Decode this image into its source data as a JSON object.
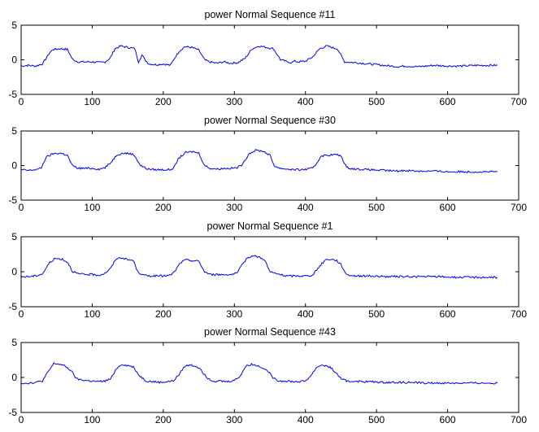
{
  "chart_data": [
    {
      "type": "line",
      "title": "power Normal Sequence #11",
      "xlim": [
        0,
        700
      ],
      "ylim": [
        -5,
        5
      ],
      "xticks": [
        0,
        100,
        200,
        300,
        400,
        500,
        600,
        700
      ],
      "yticks": [
        -5,
        0,
        5
      ],
      "grid": false,
      "color": "#0000ee",
      "series": [
        {
          "x": [
            0,
            10,
            20,
            30,
            40,
            45,
            55,
            65,
            72,
            80,
            90,
            100,
            110,
            118,
            125,
            132,
            140,
            150,
            160,
            165,
            170,
            175,
            180,
            190,
            200,
            210,
            215,
            222,
            230,
            240,
            250,
            258,
            265,
            275,
            285,
            295,
            305,
            315,
            325,
            335,
            345,
            355,
            365,
            375,
            380,
            385,
            390,
            400,
            410,
            420,
            430,
            440,
            445,
            455,
            470,
            490,
            510,
            530,
            540,
            560,
            580,
            600,
            620,
            640,
            660,
            670
          ],
          "y": [
            -0.9,
            -0.8,
            -0.9,
            -0.6,
            1.0,
            1.5,
            1.6,
            1.5,
            0.1,
            -0.3,
            -0.3,
            -0.3,
            -0.4,
            -0.3,
            0.2,
            1.6,
            2.0,
            1.8,
            1.6,
            -0.3,
            0.7,
            -0.1,
            -0.6,
            -0.7,
            -0.6,
            -0.8,
            0.1,
            1.2,
            1.9,
            1.8,
            1.4,
            0.0,
            -0.3,
            -0.5,
            -0.3,
            -0.5,
            -0.4,
            0.2,
            1.6,
            2.0,
            1.8,
            1.6,
            0.0,
            -0.3,
            -0.4,
            -0.2,
            -0.3,
            -0.2,
            0.4,
            1.6,
            2.0,
            1.7,
            1.6,
            -0.3,
            -0.4,
            -0.6,
            -0.8,
            -1.0,
            -0.9,
            -1.0,
            -0.8,
            -0.9,
            -0.9,
            -0.8,
            -0.8,
            -0.8
          ]
        }
      ]
    },
    {
      "type": "line",
      "title": "power Normal Sequence #30",
      "xlim": [
        0,
        700
      ],
      "ylim": [
        -5,
        5
      ],
      "xticks": [
        0,
        100,
        200,
        300,
        400,
        500,
        600,
        700
      ],
      "yticks": [
        -5,
        0,
        5
      ],
      "grid": false,
      "color": "#0000ee",
      "series": [
        {
          "x": [
            0,
            10,
            20,
            28,
            35,
            45,
            55,
            65,
            72,
            80,
            90,
            100,
            110,
            118,
            125,
            135,
            145,
            155,
            160,
            168,
            178,
            190,
            200,
            210,
            215,
            222,
            232,
            242,
            250,
            258,
            266,
            276,
            286,
            296,
            304,
            312,
            320,
            330,
            340,
            350,
            356,
            364,
            374,
            384,
            394,
            404,
            410,
            415,
            422,
            432,
            442,
            450,
            458,
            470,
            490,
            510,
            530,
            540,
            560,
            580,
            600,
            620,
            640,
            660,
            670
          ],
          "y": [
            -0.6,
            -0.7,
            -0.6,
            -0.4,
            1.2,
            1.7,
            1.8,
            1.5,
            0.0,
            -0.4,
            -0.4,
            -0.4,
            -0.5,
            -0.3,
            0.3,
            1.6,
            1.8,
            1.7,
            1.4,
            0.0,
            -0.5,
            -0.6,
            -0.6,
            -0.6,
            -0.3,
            1.1,
            1.9,
            2.0,
            1.8,
            0.0,
            -0.4,
            -0.5,
            -0.4,
            -0.4,
            -0.3,
            0.2,
            1.7,
            2.2,
            2.1,
            1.5,
            0.0,
            -0.4,
            -0.5,
            -0.6,
            -0.6,
            -0.5,
            -0.4,
            0.2,
            1.4,
            1.5,
            1.6,
            1.4,
            -0.3,
            -0.5,
            -0.6,
            -0.7,
            -0.8,
            -0.7,
            -0.8,
            -0.8,
            -0.9,
            -0.9,
            -0.9,
            -0.9,
            -0.9
          ]
        }
      ]
    },
    {
      "type": "line",
      "title": "power Normal Sequence #1",
      "xlim": [
        0,
        700
      ],
      "ylim": [
        -5,
        5
      ],
      "xticks": [
        0,
        100,
        200,
        300,
        400,
        500,
        600,
        700
      ],
      "yticks": [
        -5,
        0,
        5
      ],
      "grid": false,
      "color": "#0000ee",
      "series": [
        {
          "x": [
            0,
            10,
            20,
            30,
            40,
            48,
            58,
            66,
            72,
            80,
            90,
            100,
            110,
            118,
            126,
            134,
            142,
            150,
            158,
            164,
            172,
            180,
            190,
            200,
            210,
            216,
            224,
            232,
            240,
            250,
            258,
            266,
            276,
            286,
            296,
            304,
            310,
            318,
            326,
            334,
            342,
            350,
            356,
            364,
            372,
            380,
            390,
            400,
            410,
            420,
            428,
            436,
            444,
            450,
            458,
            470,
            490,
            510,
            530,
            550,
            570,
            590,
            610,
            630,
            650,
            670
          ],
          "y": [
            -0.7,
            -0.7,
            -0.6,
            -0.3,
            1.3,
            1.9,
            1.8,
            1.3,
            0.1,
            -0.3,
            -0.4,
            -0.4,
            -0.5,
            -0.2,
            0.5,
            1.9,
            2.0,
            1.7,
            1.6,
            0.0,
            -0.5,
            -0.6,
            -0.6,
            -0.6,
            -0.5,
            0.0,
            1.3,
            1.7,
            1.6,
            1.5,
            0.0,
            -0.4,
            -0.4,
            -0.4,
            -0.4,
            -0.2,
            0.8,
            2.0,
            2.3,
            2.1,
            1.8,
            0.0,
            -0.2,
            -0.4,
            -0.6,
            -0.6,
            -0.6,
            -0.6,
            -0.5,
            0.8,
            1.7,
            1.8,
            1.6,
            1.0,
            -0.4,
            -0.6,
            -0.6,
            -0.7,
            -0.7,
            -0.7,
            -0.7,
            -0.7,
            -0.8,
            -0.8,
            -0.8,
            -0.8
          ]
        }
      ]
    },
    {
      "type": "line",
      "title": "power Normal Sequence #43",
      "xlim": [
        0,
        700
      ],
      "ylim": [
        -5,
        5
      ],
      "xticks": [
        0,
        100,
        200,
        300,
        400,
        500,
        600,
        700
      ],
      "yticks": [
        -5,
        0,
        5
      ],
      "grid": false,
      "color": "#0000ee",
      "series": [
        {
          "x": [
            0,
            10,
            20,
            30,
            38,
            46,
            54,
            62,
            70,
            78,
            88,
            98,
            108,
            118,
            126,
            134,
            142,
            150,
            158,
            166,
            176,
            186,
            196,
            206,
            214,
            222,
            230,
            238,
            246,
            252,
            260,
            270,
            280,
            290,
            300,
            308,
            316,
            324,
            332,
            340,
            348,
            356,
            364,
            374,
            384,
            392,
            400,
            408,
            416,
            424,
            430,
            436,
            444,
            452,
            462,
            470,
            480,
            490,
            510,
            530,
            550,
            570,
            590,
            610,
            630,
            650,
            670
          ],
          "y": [
            -0.8,
            -0.8,
            -0.7,
            -0.5,
            0.8,
            2.0,
            1.9,
            1.6,
            1.0,
            -0.2,
            -0.4,
            -0.5,
            -0.6,
            -0.5,
            -0.2,
            1.3,
            1.9,
            1.7,
            1.5,
            0.3,
            -0.5,
            -0.6,
            -0.7,
            -0.6,
            -0.5,
            0.4,
            1.6,
            1.8,
            1.6,
            1.3,
            0.1,
            -0.5,
            -0.5,
            -0.6,
            -0.4,
            0.2,
            1.6,
            1.9,
            1.7,
            1.4,
            0.8,
            -0.2,
            -0.5,
            -0.5,
            -0.6,
            -0.6,
            -0.5,
            0.3,
            1.5,
            1.8,
            1.6,
            1.4,
            0.5,
            -0.3,
            -0.6,
            -0.5,
            -0.6,
            -0.6,
            -0.7,
            -0.7,
            -0.7,
            -0.8,
            -0.8,
            -0.8,
            -0.8,
            -0.8,
            -0.8
          ]
        }
      ]
    }
  ]
}
